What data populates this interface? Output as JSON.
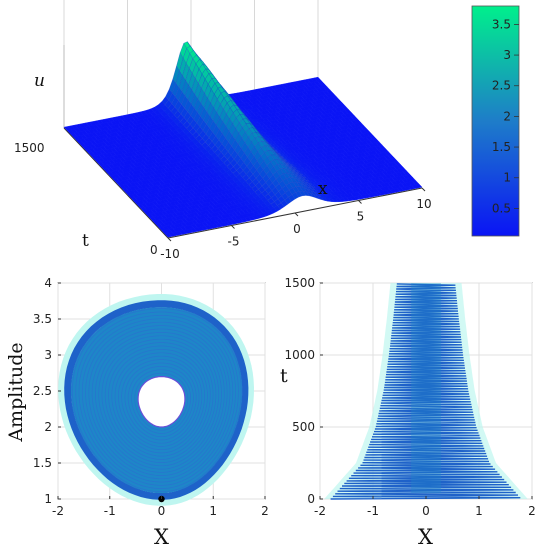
{
  "colors": {
    "surface_low": "#0a14f5",
    "surface_high": "#00f08c",
    "trajectory": "#1f62c9",
    "trajectory_fill": "#1e86c8",
    "halo": "#bff6f0",
    "marker": "#000000"
  },
  "chart_data": [
    {
      "type": "surface",
      "xlabel": "x",
      "ylabel": "t",
      "zlabel": "u",
      "x_ticks": [
        "-10",
        "-5",
        "0",
        "5",
        "10"
      ],
      "t_ticks": [
        "0",
        "1500"
      ],
      "xlim": [
        -10,
        10
      ],
      "tlim": [
        0,
        1500
      ],
      "peak_u": 3.75,
      "colorbar": {
        "ticks": [
          "0.5",
          "1",
          "1.5",
          "2",
          "2.5",
          "3",
          "3.5"
        ],
        "tick_values": [
          0.5,
          1,
          1.5,
          2,
          2.5,
          3,
          3.5
        ],
        "range": [
          0.05,
          3.8
        ]
      },
      "grid": true
    },
    {
      "type": "line",
      "xlabel": "X",
      "ylabel": "Amplitude",
      "x_ticks": [
        "-2",
        "-1",
        "0",
        "1",
        "2"
      ],
      "y_ticks": [
        "1",
        "1.5",
        "2",
        "2.5",
        "3",
        "3.5",
        "4"
      ],
      "xlim": [
        -2,
        2
      ],
      "ylim": [
        1,
        4
      ],
      "outer_orbit": {
        "center": [
          0,
          2.35
        ],
        "x_extent": [
          -1.85,
          1.65
        ],
        "y_extent": [
          1.0,
          3.75
        ]
      },
      "inner_hole": {
        "center": [
          0,
          2.35
        ],
        "x_extent": [
          -0.45,
          0.45
        ],
        "y_extent": [
          2.0,
          2.7
        ]
      },
      "start_point": [
        0,
        1.0
      ],
      "grid": true
    },
    {
      "type": "line",
      "xlabel": "X",
      "ylabel": "t",
      "x_ticks": [
        "-2",
        "-1",
        "0",
        "1",
        "2"
      ],
      "y_ticks": [
        "0",
        "500",
        "1000",
        "1500"
      ],
      "xlim": [
        -2,
        2
      ],
      "ylim": [
        0,
        1500
      ],
      "envelope": {
        "t": [
          0,
          250,
          500,
          750,
          1000,
          1250,
          1500
        ],
        "max_abs_x": [
          1.8,
          1.2,
          0.95,
          0.8,
          0.7,
          0.62,
          0.55
        ]
      },
      "grid": true
    }
  ]
}
